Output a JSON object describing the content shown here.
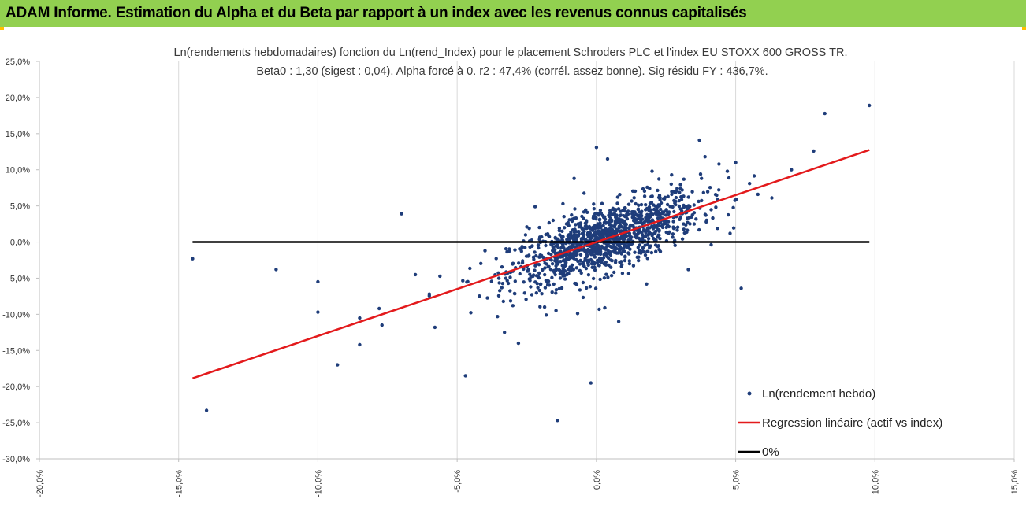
{
  "header": {
    "title": "ADAM Informe. Estimation du Alpha et du Beta par rapport à un index avec les revenus connus capitalisés"
  },
  "colors": {
    "header_bg": "#92d050",
    "accent": "#ffc000",
    "points": "#1f3d7a",
    "regression": "#e31a1c",
    "zero_line": "#000000",
    "grid": "#d9d9d9"
  },
  "chart_data": {
    "type": "scatter",
    "title": "Ln(rendements hebdomadaires) fonction du Ln(rend_Index) pour le placement Schroders PLC et l'index EU STOXX 600 GROSS TR.",
    "subtitle": "Beta0 : 1,30 (sigest : 0,04).  Alpha forcé à 0. r2 : 47,4% (corrél. assez bonne). Sig résidu FY : 436,7%.",
    "xlim": [
      -0.2,
      0.15
    ],
    "ylim": [
      -0.3,
      0.25
    ],
    "x_ticks": [
      "-20,0%",
      "-15,0%",
      "-10,0%",
      "-5,0%",
      "0,0%",
      "5,0%",
      "10,0%",
      "15,0%"
    ],
    "y_ticks": [
      "25,0%",
      "20,0%",
      "15,0%",
      "10,0%",
      "5,0%",
      "0,0%",
      "-5,0%",
      "-10,0%",
      "-15,0%",
      "-20,0%",
      "-25,0%",
      "-30,0%"
    ],
    "grid": "vertical",
    "legend_position": "bottom-right",
    "beta": 1.3,
    "regression_x": [
      -0.145,
      0.098
    ],
    "zero_x": [
      -0.145,
      0.098
    ],
    "legend": [
      {
        "label": "Ln(rendement hebdo)",
        "kind": "marker"
      },
      {
        "label": "Regression linéaire (actif vs index)",
        "kind": "line-red"
      },
      {
        "label": "0%",
        "kind": "line-black"
      }
    ],
    "outliers": [
      [
        -0.145,
        -0.023
      ],
      [
        -0.14,
        -0.233
      ],
      [
        -0.115,
        -0.038
      ],
      [
        -0.1,
        -0.055
      ],
      [
        -0.1,
        -0.097
      ],
      [
        -0.093,
        -0.17
      ],
      [
        -0.085,
        -0.142
      ],
      [
        -0.085,
        -0.105
      ],
      [
        -0.07,
        0.039
      ],
      [
        -0.078,
        -0.092
      ],
      [
        -0.077,
        -0.115
      ],
      [
        -0.065,
        -0.045
      ],
      [
        -0.06,
        -0.072
      ],
      [
        -0.058,
        -0.118
      ],
      [
        -0.047,
        -0.185
      ],
      [
        -0.04,
        -0.012
      ],
      [
        -0.033,
        -0.125
      ],
      [
        -0.028,
        -0.14
      ],
      [
        -0.022,
        0.049
      ],
      [
        -0.012,
        0.053
      ],
      [
        -0.014,
        -0.247
      ],
      [
        -0.002,
        -0.195
      ],
      [
        0.001,
        -0.093
      ],
      [
        0.008,
        -0.11
      ],
      [
        0.018,
        -0.058
      ],
      [
        0.033,
        -0.038
      ],
      [
        0.037,
        0.141
      ],
      [
        0.039,
        0.118
      ],
      [
        0.044,
        0.108
      ],
      [
        0.047,
        0.098
      ],
      [
        0.05,
        0.11
      ],
      [
        0.052,
        -0.064
      ],
      [
        0.058,
        0.066
      ],
      [
        0.063,
        0.061
      ],
      [
        0.07,
        0.1
      ],
      [
        0.078,
        0.126
      ],
      [
        0.082,
        0.178
      ],
      [
        0.098,
        0.189
      ],
      [
        0.0,
        0.131
      ],
      [
        0.004,
        0.115
      ],
      [
        -0.008,
        0.088
      ],
      [
        0.02,
        0.098
      ],
      [
        0.027,
        0.093
      ],
      [
        0.048,
        0.012
      ],
      [
        0.055,
        0.081
      ],
      [
        -0.02,
        -0.058
      ],
      [
        -0.03,
        -0.088
      ],
      [
        -0.018,
        -0.101
      ],
      [
        0.003,
        -0.091
      ],
      [
        -0.025,
        0.021
      ]
    ],
    "random_points": {
      "count": 1250,
      "mean_x": 0.003,
      "sd_x": 0.017,
      "residual_sd": 0.028
    }
  }
}
